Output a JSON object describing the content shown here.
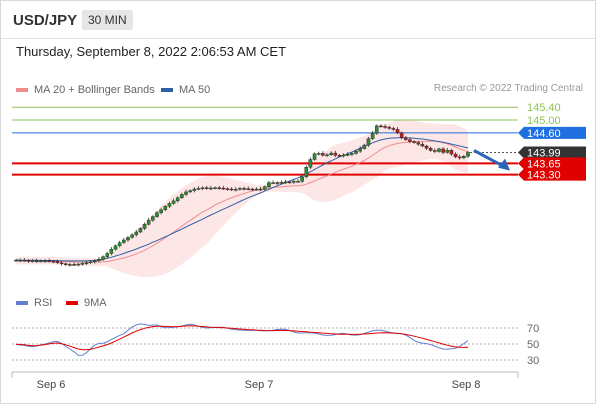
{
  "header": {
    "symbol": "USD/JPY",
    "timeframe": "30 MIN",
    "timestamp": "Thursday, September 8, 2022 2:06:53 AM CET"
  },
  "legend": {
    "ma_bb": {
      "label": "MA 20 + Bollinger Bands",
      "color": "#f08c8c"
    },
    "ma50": {
      "label": "MA 50",
      "color": "#2f5fa7"
    },
    "credit": "Research © 2022 Trading Central"
  },
  "colors": {
    "up_candle": "#2e8b2e",
    "down_candle": "#b22222",
    "support": "#e00000",
    "pivot": "#1f6fe0",
    "resistance": "#8fc35a",
    "last_price": "#333333",
    "bollinger_fill": "#fde2e2",
    "rsi": "#6080d0",
    "rsi_ma": "#e00000"
  },
  "levels": [
    {
      "value": "145.40",
      "type": "resistance"
    },
    {
      "value": "145.00",
      "type": "resistance"
    },
    {
      "value": "144.60",
      "type": "pivot"
    },
    {
      "value": "143.99",
      "type": "last"
    },
    {
      "value": "143.65",
      "type": "support"
    },
    {
      "value": "143.30",
      "type": "support"
    }
  ],
  "rsi_panel": {
    "rsi_label": "RSI",
    "ma_label": "9MA",
    "ticks": [
      "70",
      "50",
      "30"
    ]
  },
  "x_axis": {
    "labels": [
      "Sep 6",
      "Sep 7",
      "Sep 8"
    ]
  },
  "forecast_arrow": {
    "direction": "down",
    "target": 143.3
  },
  "chart_data": {
    "type": "candlestick",
    "title": "USD/JPY",
    "timeframe": "30 MIN",
    "ylim": [
      140.2,
      145.75
    ],
    "x_labels": [
      "Sep 6",
      "Sep 7",
      "Sep 8"
    ],
    "closes": [
      140.63,
      140.63,
      140.62,
      140.6,
      140.61,
      140.6,
      140.61,
      140.61,
      140.6,
      140.59,
      140.55,
      140.52,
      140.49,
      140.5,
      140.49,
      140.51,
      140.53,
      140.55,
      140.58,
      140.61,
      140.66,
      140.74,
      140.84,
      140.97,
      141.08,
      141.18,
      141.26,
      141.34,
      141.42,
      141.51,
      141.62,
      141.75,
      141.88,
      141.99,
      142.11,
      142.2,
      142.31,
      142.4,
      142.48,
      142.58,
      142.68,
      142.76,
      142.8,
      142.85,
      142.87,
      142.89,
      142.87,
      142.88,
      142.89,
      142.88,
      142.86,
      142.85,
      142.83,
      142.84,
      142.87,
      142.86,
      142.85,
      142.84,
      142.85,
      142.84,
      142.92,
      143.05,
      143.05,
      143.03,
      143.06,
      143.07,
      143.06,
      143.09,
      143.09,
      143.23,
      143.53,
      143.77,
      143.95,
      143.96,
      143.9,
      143.92,
      143.97,
      143.9,
      143.89,
      143.91,
      143.93,
      143.96,
      144.03,
      144.11,
      144.22,
      144.42,
      144.59,
      144.82,
      144.8,
      144.78,
      144.74,
      144.71,
      144.6,
      144.45,
      144.39,
      144.33,
      144.3,
      144.25,
      144.19,
      144.12,
      144.05,
      144.02,
      144.1,
      143.99,
      144.06,
      143.94,
      143.85,
      143.82,
      143.87,
      143.99
    ],
    "ma20": [
      140.62,
      140.62,
      140.62,
      140.62,
      140.62,
      140.62,
      140.62,
      140.62,
      140.62,
      140.62,
      140.6,
      140.6,
      140.59,
      140.58,
      140.58,
      140.57,
      140.57,
      140.57,
      140.57,
      140.57,
      140.57,
      140.58,
      140.59,
      140.61,
      140.64,
      140.67,
      140.7,
      140.74,
      140.78,
      140.83,
      140.88,
      140.94,
      141.01,
      141.08,
      141.16,
      141.24,
      141.33,
      141.42,
      141.51,
      141.6,
      141.69,
      141.79,
      141.87,
      141.96,
      142.05,
      142.13,
      142.2,
      142.27,
      142.35,
      142.41,
      142.47,
      142.53,
      142.58,
      142.62,
      142.67,
      142.71,
      142.75,
      142.79,
      142.81,
      142.83,
      142.86,
      142.88,
      142.9,
      142.91,
      142.92,
      142.93,
      142.94,
      142.95,
      142.95,
      142.97,
      143.0,
      143.05,
      143.1,
      143.16,
      143.21,
      143.26,
      143.32,
      143.37,
      143.42,
      143.47,
      143.51,
      143.56,
      143.62,
      143.68,
      143.74,
      143.82,
      143.9,
      143.99,
      144.08,
      144.15,
      144.2,
      144.24,
      144.27,
      144.29,
      144.3,
      144.32,
      144.33,
      144.33,
      144.33,
      144.34,
      144.34,
      144.34,
      144.32,
      144.29,
      144.26,
      144.21,
      144.16,
      144.1,
      144.05,
      144.01
    ],
    "ma50": [
      140.64,
      140.63,
      140.63,
      140.63,
      140.63,
      140.63,
      140.62,
      140.62,
      140.62,
      140.62,
      140.62,
      140.61,
      140.61,
      140.61,
      140.61,
      140.61,
      140.61,
      140.61,
      140.62,
      140.62,
      140.64,
      140.66,
      140.69,
      140.72,
      140.76,
      140.8,
      140.84,
      140.89,
      140.93,
      140.98,
      141.03,
      141.08,
      141.13,
      141.19,
      141.24,
      141.3,
      141.36,
      141.42,
      141.48,
      141.54,
      141.6,
      141.67,
      141.73,
      141.79,
      141.85,
      141.91,
      141.98,
      142.04,
      142.1,
      142.16,
      142.22,
      142.28,
      142.34,
      142.4,
      142.46,
      142.52,
      142.58,
      142.63,
      142.68,
      142.73,
      142.79,
      142.84,
      142.9,
      142.95,
      143.0,
      143.05,
      143.1,
      143.15,
      143.2,
      143.26,
      143.32,
      143.39,
      143.46,
      143.53,
      143.6,
      143.67,
      143.73,
      143.79,
      143.85,
      143.9,
      143.95,
      144.0,
      144.06,
      144.12,
      144.18,
      144.23,
      144.29,
      144.34,
      144.38,
      144.41,
      144.43,
      144.44,
      144.45,
      144.45,
      144.45,
      144.44,
      144.43,
      144.42,
      144.41,
      144.39,
      144.37,
      144.35,
      144.33,
      144.31,
      144.28,
      144.25,
      144.22,
      144.19,
      144.16,
      144.13
    ],
    "series": [
      {
        "name": "MA 20 + Bollinger Bands"
      },
      {
        "name": "MA 50"
      },
      {
        "name": "RSI"
      },
      {
        "name": "9MA"
      }
    ],
    "rsi": {
      "ylim": [
        20,
        80
      ],
      "ticks": [
        70,
        50,
        30
      ],
      "rsi_values": [
        49.5,
        48.8,
        48.2,
        47.1,
        46.5,
        47.5,
        48.9,
        50.0,
        51.2,
        52.9,
        53.3,
        50.9,
        46.9,
        43.7,
        40.3,
        35.8,
        35.9,
        39.1,
        44.3,
        48.6,
        50.8,
        51.0,
        52.6,
        55.7,
        58.1,
        60.7,
        62.8,
        67.1,
        71.3,
        73.9,
        75.1,
        74.5,
        73.3,
        73.6,
        73.7,
        71.7,
        70.4,
        70.5,
        71.0,
        71.6,
        72.5,
        73.8,
        74.6,
        73.7,
        72.1,
        70.8,
        70.0,
        70.2,
        70.7,
        71.0,
        70.9,
        69.8,
        68.5,
        67.8,
        67.5,
        67.3,
        67.0,
        67.0,
        67.0,
        66.6,
        66.4,
        66.6,
        67.2,
        68.1,
        68.6,
        68.2,
        67.0,
        65.0,
        63.8,
        63.8,
        64.1,
        64.1,
        63.6,
        62.5,
        61.3,
        60.7,
        61.0,
        61.9,
        63.0,
        63.3,
        62.4,
        61.3,
        61.1,
        61.8,
        63.2,
        64.9,
        66.5,
        67.3,
        67.1,
        66.1,
        64.8,
        63.9,
        63.3,
        62.7,
        61.1,
        58.0,
        54.5,
        52.1,
        51.1,
        50.5,
        49.3,
        47.4,
        45.2,
        43.7,
        43.5,
        44.0,
        44.6,
        46.9,
        50.6,
        54.1
      ],
      "ma_values": [
        49.7,
        49.5,
        49.0,
        48.3,
        47.8,
        48.0,
        48.6,
        49.3,
        50.1,
        50.9,
        51.2,
        50.4,
        49.0,
        47.3,
        45.5,
        43.7,
        42.8,
        42.7,
        43.5,
        44.8,
        46.2,
        47.6,
        49.3,
        51.3,
        53.6,
        56.1,
        58.6,
        61.2,
        63.8,
        66.1,
        68.0,
        69.6,
        70.8,
        71.7,
        72.2,
        72.2,
        72.0,
        71.8,
        71.7,
        71.8,
        72.1,
        72.5,
        72.7,
        72.6,
        72.3,
        71.9,
        71.4,
        71.0,
        70.7,
        70.5,
        70.3,
        70.0,
        69.6,
        69.2,
        68.8,
        68.4,
        68.0,
        67.7,
        67.4,
        67.1,
        66.9,
        66.8,
        66.8,
        66.9,
        67.0,
        66.9,
        66.7,
        66.4,
        66.0,
        65.6,
        65.2,
        64.8,
        64.4,
        64.0,
        63.6,
        63.2,
        62.8,
        62.5,
        62.3,
        62.2,
        62.1,
        62.0,
        62.0,
        62.2,
        62.5,
        62.9,
        63.3,
        63.7,
        63.9,
        64.0,
        63.9,
        63.6,
        63.2,
        62.7,
        62.0,
        61.0,
        59.8,
        58.5,
        57.2,
        55.8,
        54.4,
        52.9,
        51.4,
        49.9,
        48.5,
        47.3,
        46.4,
        45.9,
        45.7,
        45.8
      ]
    }
  }
}
